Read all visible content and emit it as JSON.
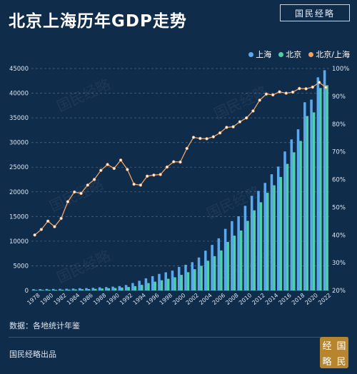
{
  "header": {
    "title": "北京上海历年GDP走势",
    "brand": "国民经略"
  },
  "footer": {
    "source": "数据：各地统计年鉴",
    "publisher": "国民经略出品",
    "seal_chars": [
      "经",
      "国",
      "略",
      "民"
    ]
  },
  "watermark_text": "国民经略",
  "colors": {
    "background": "#0f2c4b",
    "shanghai": "#5aa8ee",
    "beijing": "#4fd1a8",
    "ratio": "#f0a463"
  },
  "chart_data": {
    "type": "bar",
    "title": "北京上海历年GDP走势",
    "x": [
      1978,
      1979,
      1980,
      1981,
      1982,
      1983,
      1984,
      1985,
      1986,
      1987,
      1988,
      1989,
      1990,
      1991,
      1992,
      1993,
      1994,
      1995,
      1996,
      1997,
      1998,
      1999,
      2000,
      2001,
      2002,
      2003,
      2004,
      2005,
      2006,
      2007,
      2008,
      2009,
      2010,
      2011,
      2012,
      2013,
      2014,
      2015,
      2016,
      2017,
      2018,
      2019,
      2020,
      2021,
      2022
    ],
    "x_tick_labels": [
      "1978",
      "1980",
      "1982",
      "1984",
      "1986",
      "1988",
      "1990",
      "1992",
      "1994",
      "1996",
      "1998",
      "2000",
      "2002",
      "2004",
      "2006",
      "2008",
      "2010",
      "2012",
      "2014",
      "2016",
      "2018",
      "2020",
      "2022"
    ],
    "series": [
      {
        "name": "上海",
        "type": "bar",
        "axis": "left",
        "values": [
          273,
          286,
          312,
          325,
          337,
          352,
          391,
          467,
          491,
          546,
          648,
          697,
          782,
          894,
          1114,
          1520,
          1972,
          2463,
          2903,
          3360,
          3688,
          4035,
          4771,
          5210,
          5741,
          6694,
          8072,
          9248,
          10572,
          12494,
          14070,
          15046,
          17166,
          19196,
          20182,
          21818,
          23568,
          25123,
          28179,
          30633,
          32680,
          38155,
          38701,
          43215,
          44653
        ]
      },
      {
        "name": "北京",
        "type": "bar",
        "axis": "left",
        "values": [
          109,
          120,
          139,
          139,
          155,
          183,
          217,
          257,
          284,
          327,
          410,
          456,
          501,
          599,
          709,
          886,
          1145,
          1508,
          1789,
          2077,
          2377,
          2679,
          3161,
          3708,
          4315,
          5007,
          6033,
          6970,
          8118,
          9847,
          11115,
          12153,
          14114,
          16252,
          17879,
          19801,
          21331,
          23015,
          25669,
          28015,
          30320,
          35371,
          36103,
          41046,
          41611
        ]
      },
      {
        "name": "北京/上海",
        "type": "line",
        "axis": "right",
        "values": [
          40,
          42,
          45,
          43,
          46,
          52,
          55.5,
          55,
          58,
          60,
          63.3,
          65.4,
          64,
          67,
          63.6,
          58.3,
          58,
          61.2,
          61.6,
          61.8,
          64.5,
          66.4,
          66.3,
          71.2,
          75.2,
          74.8,
          74.7,
          75.4,
          76.8,
          78.8,
          79,
          80.8,
          82.2,
          84.7,
          88.6,
          90.8,
          90.5,
          91.6,
          91.1,
          91.5,
          92.8,
          92.7,
          93.3,
          95,
          93.2
        ]
      }
    ],
    "y_left": {
      "ticks": [
        "0",
        "5000",
        "10000",
        "15000",
        "20000",
        "25000",
        "30000",
        "35000",
        "40000",
        "45000"
      ],
      "range": [
        0,
        45000
      ]
    },
    "y_right": {
      "ticks": [
        "20%",
        "30%",
        "40%",
        "50%",
        "60%",
        "70%",
        "80%",
        "90%",
        "100%"
      ],
      "range": [
        20,
        100
      ]
    },
    "legend": {
      "position": "top-right",
      "labels": [
        "上海",
        "北京",
        "北京/上海"
      ]
    },
    "grid": "horizontal-dashed"
  }
}
